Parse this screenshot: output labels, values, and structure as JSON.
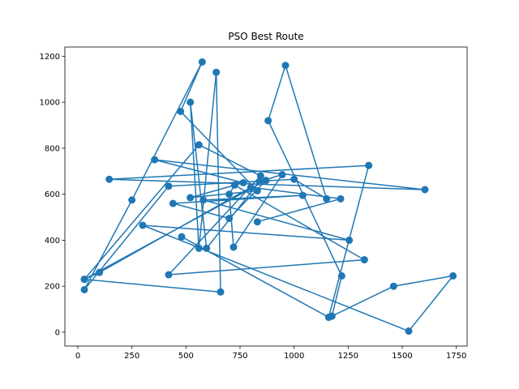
{
  "chart_data": {
    "type": "line",
    "title": "PSO Best Route",
    "xlabel": "",
    "ylabel": "",
    "xlim": [
      -60,
      1800
    ],
    "ylim": [
      -60,
      1240
    ],
    "xticks": [
      0,
      250,
      500,
      750,
      1000,
      1250,
      1500,
      1750
    ],
    "yticks": [
      0,
      200,
      400,
      600,
      800,
      1000,
      1200
    ],
    "grid": false,
    "colors": {
      "line": "#1f77b4",
      "marker": "#1f77b4"
    },
    "series": [
      {
        "x": [
          480,
          1160,
          1345,
          145,
          1605,
          355,
          765,
          520,
          830,
          475,
          575,
          250,
          30,
          420,
          1000,
          1150,
          960,
          880,
          1220,
          1175,
          1460,
          1735,
          1530,
          300,
          1255,
          580,
          1040,
          440,
          700,
          870,
          30,
          660,
          640,
          560,
          520,
          595,
          840,
          945,
          720,
          700,
          725,
          1325,
          420,
          845,
          560,
          30,
          100,
          800,
          1215,
          830
        ],
        "y": [
          415,
          65,
          725,
          665,
          620,
          750,
          650,
          585,
          615,
          960,
          1175,
          575,
          185,
          635,
          665,
          580,
          1160,
          920,
          245,
          70,
          200,
          245,
          5,
          465,
          400,
          575,
          595,
          560,
          495,
          660,
          230,
          175,
          1130,
          365,
          1000,
          365,
          655,
          685,
          370,
          600,
          640,
          315,
          250,
          680,
          815,
          230,
          260,
          630,
          580,
          480
        ]
      }
    ]
  }
}
